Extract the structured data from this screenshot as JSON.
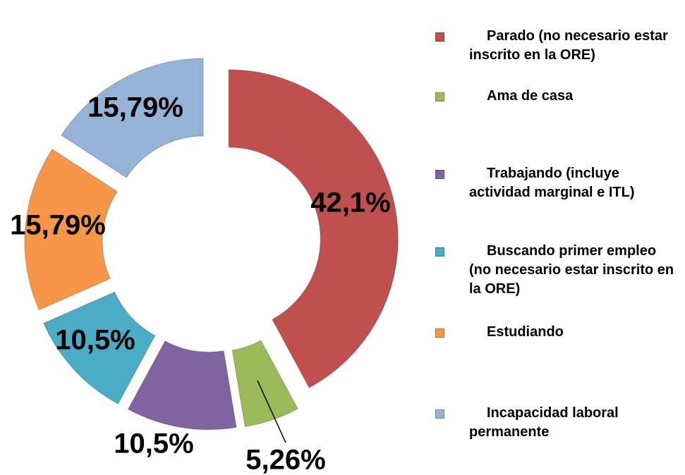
{
  "chart_data": {
    "type": "donut",
    "categories": [
      "Parado (no necesario estar inscrito en la ORE)",
      "Ama de casa",
      "Trabajando (incluye actividad marginal e ITL)",
      "Buscando primer empleo (no necesario estar inscrito en la ORE)",
      "Estudiando",
      "Incapacidad laboral permanente"
    ],
    "values": [
      42.1,
      5.26,
      10.5,
      10.5,
      15.79,
      15.79
    ],
    "value_labels": [
      "42,1%",
      "5,26%",
      "10,5%",
      "10,5%",
      "15,79%",
      "15,79%"
    ],
    "colors": [
      "#c0504d",
      "#9bbb59",
      "#8064a2",
      "#4bacc6",
      "#f79646",
      "#95b3d7"
    ]
  }
}
